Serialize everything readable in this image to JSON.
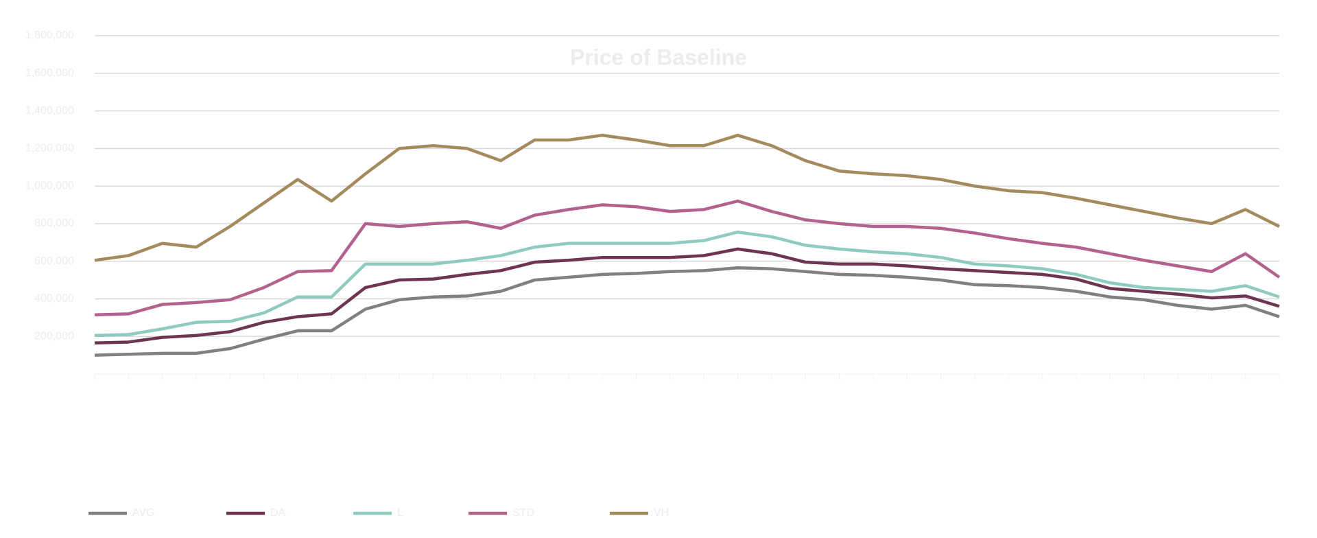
{
  "chart_data": {
    "type": "line",
    "title": "Price of Baseline",
    "categories": [
      null,
      null,
      null,
      null,
      null,
      null,
      null,
      null,
      null,
      null,
      null,
      null,
      null,
      null,
      null,
      null,
      null,
      null,
      null,
      null,
      null,
      null,
      null,
      null,
      null,
      null,
      null,
      null,
      null,
      null,
      null,
      null,
      null,
      null,
      null,
      null
    ],
    "series": [
      {
        "name": "AVG",
        "color": "#808080",
        "values": [
          100000,
          105000,
          110000,
          110000,
          135000,
          185000,
          230000,
          230000,
          345000,
          395000,
          410000,
          415000,
          440000,
          500000,
          515000,
          530000,
          535000,
          545000,
          550000,
          565000,
          560000,
          545000,
          530000,
          525000,
          515000,
          500000,
          475000,
          470000,
          460000,
          440000,
          410000,
          395000,
          365000,
          345000,
          365000,
          305000
        ]
      },
      {
        "name": "DA",
        "color": "#6e3553",
        "values": [
          165000,
          170000,
          195000,
          205000,
          225000,
          275000,
          305000,
          320000,
          460000,
          500000,
          505000,
          530000,
          550000,
          595000,
          605000,
          620000,
          620000,
          620000,
          630000,
          665000,
          640000,
          595000,
          585000,
          585000,
          575000,
          560000,
          550000,
          540000,
          530000,
          505000,
          455000,
          440000,
          425000,
          405000,
          415000,
          360000
        ]
      },
      {
        "name": "L",
        "color": "#8fcbbf",
        "values": [
          205000,
          210000,
          240000,
          275000,
          280000,
          325000,
          410000,
          410000,
          585000,
          585000,
          585000,
          605000,
          630000,
          675000,
          695000,
          695000,
          695000,
          695000,
          710000,
          755000,
          730000,
          685000,
          665000,
          650000,
          640000,
          620000,
          585000,
          575000,
          560000,
          530000,
          485000,
          460000,
          450000,
          440000,
          470000,
          410000
        ]
      },
      {
        "name": "STD",
        "color": "#b3628f",
        "values": [
          315000,
          320000,
          370000,
          380000,
          395000,
          460000,
          545000,
          550000,
          800000,
          785000,
          800000,
          810000,
          775000,
          845000,
          875000,
          900000,
          890000,
          865000,
          875000,
          920000,
          865000,
          820000,
          800000,
          785000,
          785000,
          775000,
          750000,
          720000,
          695000,
          675000,
          640000,
          605000,
          575000,
          545000,
          640000,
          515000
        ]
      },
      {
        "name": "VH",
        "color": "#a58a5d",
        "values": [
          605000,
          630000,
          695000,
          675000,
          785000,
          910000,
          1035000,
          920000,
          1065000,
          1200000,
          1215000,
          1200000,
          1135000,
          1245000,
          1245000,
          1270000,
          1245000,
          1215000,
          1215000,
          1270000,
          1215000,
          1135000,
          1080000,
          1065000,
          1055000,
          1035000,
          1000000,
          975000,
          965000,
          935000,
          900000,
          865000,
          830000,
          800000,
          875000,
          785000
        ]
      }
    ],
    "ylim": [
      0,
      1800000
    ],
    "yticks": [
      {
        "value": 200000,
        "label": "200,000"
      },
      {
        "value": 400000,
        "label": "400,000"
      },
      {
        "value": 600000,
        "label": "600,000"
      },
      {
        "value": 800000,
        "label": "800,000"
      },
      {
        "value": 1000000,
        "label": "1,000,000"
      },
      {
        "value": 1200000,
        "label": "1,200,000"
      },
      {
        "value": 1400000,
        "label": "1,400,000"
      },
      {
        "value": 1600000,
        "label": "1,600,000"
      },
      {
        "value": 1800000,
        "label": "1,800,000"
      }
    ],
    "grid": true
  }
}
